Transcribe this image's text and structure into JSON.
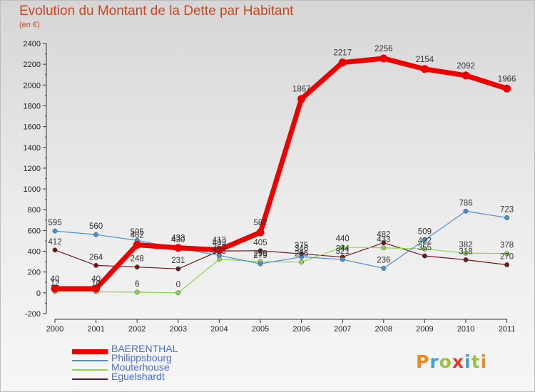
{
  "title": "Evolution du Montant de la Dette par Habitant",
  "subtitle": "(en €)",
  "logo": {
    "text": "Proxiti",
    "colors": [
      "#f0891e",
      "#3fa0d8",
      "#9ac23c",
      "#e23b2e",
      "#3fa0d8",
      "#9ac23c",
      "#f0891e"
    ]
  },
  "chart_data": {
    "type": "line",
    "x": [
      "2000",
      "2001",
      "2002",
      "2003",
      "2004",
      "2005",
      "2006",
      "2007",
      "2008",
      "2009",
      "2010",
      "2011"
    ],
    "ylim": [
      -200,
      2400
    ],
    "yticks": [
      -200,
      0,
      200,
      400,
      600,
      800,
      1000,
      1200,
      1400,
      1600,
      1800,
      2000,
      2200,
      2400
    ],
    "grid": false,
    "legend_position": "bottom-left",
    "series": [
      {
        "name": "Eguelshardt",
        "color": "#6b1a1a",
        "width": 1.2,
        "values": [
          412,
          264,
          248,
          231,
          403,
          405,
          375,
          344,
          482,
          355,
          318,
          270
        ]
      },
      {
        "name": "Mouterhouse",
        "color": "#8fd44f",
        "width": 1.2,
        "values": [
          12,
          10,
          6,
          0,
          323,
          299,
          296,
          440,
          433,
          422,
          382,
          378
        ]
      },
      {
        "name": "Philippsbourg",
        "color": "#4a90d0",
        "width": 1.2,
        "values": [
          595,
          560,
          505,
          430,
          360,
          279,
          346,
          321,
          236,
          509,
          786,
          723
        ]
      },
      {
        "name": "BAERENTHAL",
        "color": "#ee0000",
        "width": 7,
        "values": [
          40,
          40,
          462,
          433,
          413,
          582,
          1867,
          2217,
          2256,
          2154,
          2092,
          1966
        ]
      }
    ]
  }
}
